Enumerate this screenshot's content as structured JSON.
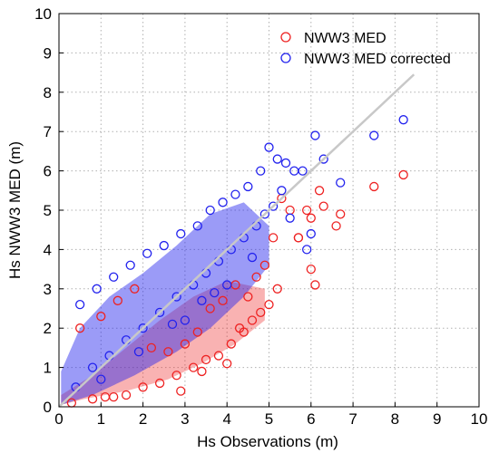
{
  "chart_data": {
    "type": "scatter",
    "xlabel": "Hs Observations (m)",
    "ylabel": "Hs NWW3 MED (m)",
    "xlim": [
      0,
      10
    ],
    "ylim": [
      0,
      10
    ],
    "xticks": [
      "0",
      "1",
      "2",
      "3",
      "4",
      "5",
      "6",
      "7",
      "8",
      "9",
      "10"
    ],
    "yticks": [
      "0",
      "1",
      "2",
      "3",
      "4",
      "5",
      "6",
      "7",
      "8",
      "9",
      "10"
    ],
    "grid": true,
    "legend_position": "top-right",
    "marker": "open-circle",
    "reference_line": {
      "x": [
        0,
        8.45
      ],
      "y": [
        0,
        8.45
      ],
      "color": "#c8c8c8"
    },
    "series": [
      {
        "name": "NWW3 MED",
        "color": "#ee2222",
        "x": [
          0.5,
          1.0,
          1.4,
          1.8,
          2.2,
          2.6,
          3.0,
          3.3,
          3.6,
          3.9,
          4.2,
          4.5,
          4.7,
          4.9,
          5.1,
          5.3,
          5.5,
          5.7,
          5.9,
          6.0,
          6.2,
          6.3,
          6.6,
          6.7,
          7.5,
          8.2,
          1.1,
          1.6,
          2.0,
          2.4,
          2.8,
          3.2,
          3.5,
          3.8,
          4.1,
          4.4,
          4.6,
          4.8,
          5.0,
          5.2,
          0.3,
          0.8,
          1.3,
          2.9,
          3.4,
          4.0,
          4.3,
          6.1,
          6.0,
          5.7
        ],
        "y": [
          2.0,
          2.3,
          2.7,
          3.0,
          1.5,
          1.4,
          1.6,
          1.9,
          2.5,
          2.7,
          3.1,
          2.8,
          3.3,
          3.6,
          4.3,
          5.3,
          5.0,
          4.3,
          5.0,
          3.5,
          5.5,
          5.1,
          4.6,
          4.9,
          5.6,
          5.9,
          0.25,
          0.3,
          0.5,
          0.6,
          0.8,
          1.0,
          1.2,
          1.3,
          1.6,
          1.9,
          2.2,
          2.4,
          2.6,
          3.0,
          0.1,
          0.2,
          0.25,
          0.4,
          0.9,
          1.1,
          2.0,
          3.1,
          4.8,
          4.3
        ]
      },
      {
        "name": "NWW3 MED corrected",
        "color": "#2222ee",
        "x": [
          0.5,
          0.9,
          1.3,
          1.7,
          2.1,
          2.5,
          2.9,
          3.3,
          3.6,
          3.9,
          4.2,
          4.5,
          4.8,
          5.0,
          5.2,
          5.4,
          5.6,
          5.8,
          6.1,
          6.3,
          6.7,
          7.5,
          8.2,
          0.4,
          0.8,
          1.2,
          1.6,
          2.0,
          2.4,
          2.8,
          3.2,
          3.5,
          3.8,
          4.1,
          4.4,
          4.7,
          4.9,
          5.1,
          5.3,
          5.5,
          3.0,
          3.4,
          4.0,
          4.6,
          5.9,
          6.0,
          1.0,
          1.9,
          2.7,
          3.7
        ],
        "y": [
          2.6,
          3.0,
          3.3,
          3.6,
          3.9,
          4.1,
          4.4,
          4.6,
          5.0,
          5.2,
          5.4,
          5.6,
          6.0,
          6.6,
          6.3,
          6.2,
          6.0,
          6.0,
          6.9,
          6.3,
          5.7,
          6.9,
          7.3,
          0.5,
          1.0,
          1.3,
          1.7,
          2.0,
          2.4,
          2.8,
          3.1,
          3.4,
          3.7,
          4.0,
          4.3,
          4.6,
          4.9,
          5.1,
          5.5,
          4.8,
          2.2,
          2.7,
          3.1,
          3.8,
          4.0,
          4.4,
          0.7,
          1.4,
          2.1,
          2.9
        ]
      }
    ]
  }
}
